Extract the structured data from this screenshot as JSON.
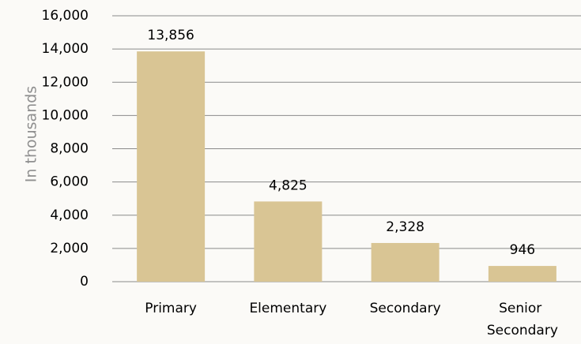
{
  "chart_data": {
    "type": "bar",
    "ylabel": "In thousands",
    "categories": [
      "Primary",
      "Elementary",
      "Secondary",
      "Senior Secondary"
    ],
    "values": [
      13856,
      4825,
      2328,
      946
    ],
    "value_labels": [
      "13,856",
      "4,825",
      "2,328",
      "946"
    ],
    "color": "#d9c594",
    "ylim": [
      0,
      16000
    ],
    "yticks": [
      0,
      {
        "value": 2000,
        "label": "2,000"
      },
      {
        "value": 4000,
        "label": "4,000"
      },
      {
        "value": 6000,
        "label": "6,000"
      },
      {
        "value": 8000,
        "label": "8,000"
      },
      {
        "value": 10000,
        "label": "10,000"
      },
      {
        "value": 12000,
        "label": "12,000"
      },
      {
        "value": 14000,
        "label": "14,000"
      },
      {
        "value": 16000,
        "label": "16,000"
      }
    ],
    "grid": true
  }
}
